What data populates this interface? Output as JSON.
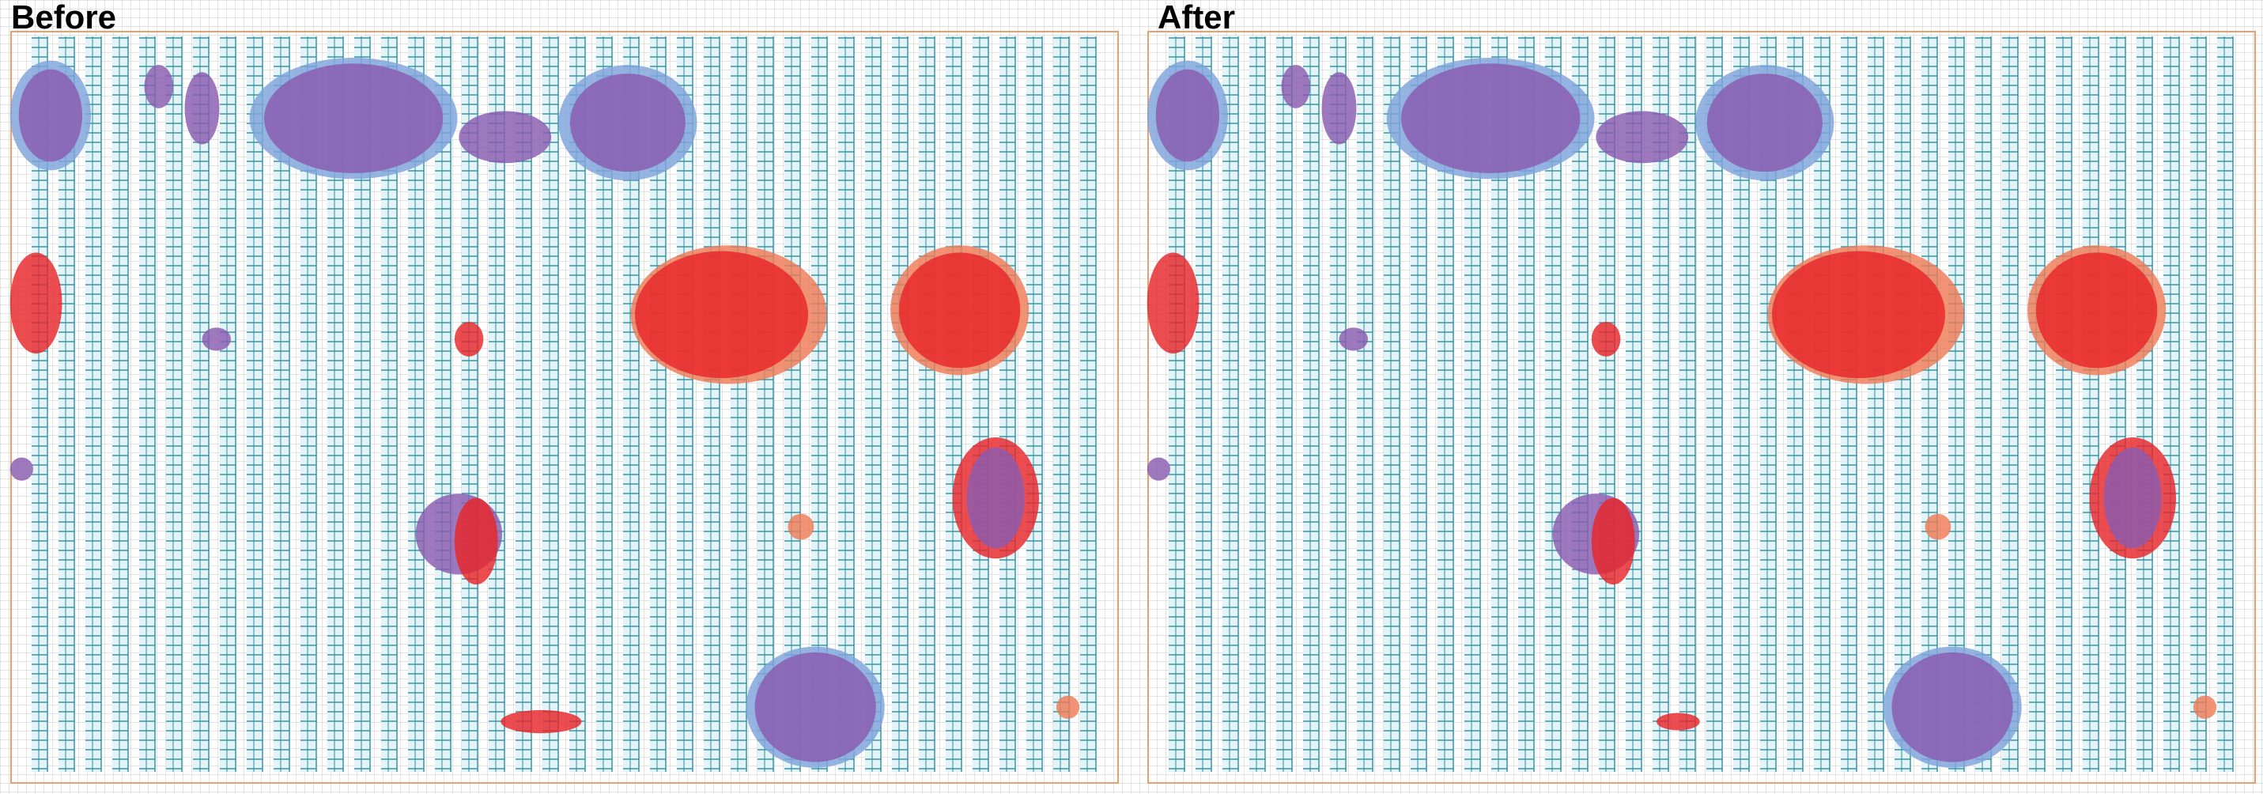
{
  "panels": [
    {
      "title": "Before"
    },
    {
      "title": "After"
    }
  ]
}
